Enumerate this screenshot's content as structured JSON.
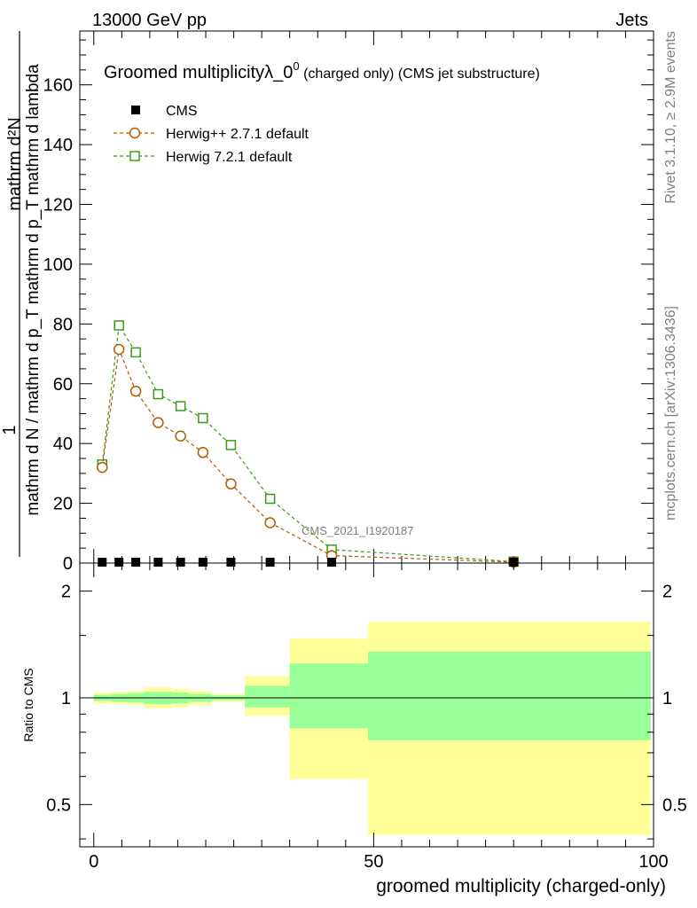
{
  "header": {
    "energy": "13000 GeV pp",
    "category": "Jets"
  },
  "side": {
    "rivet": "Rivet 3.1.10, ≥ 2.9M events",
    "mcplots": "mcplots.cern.ch [arXiv:1306.3436]"
  },
  "colors": {
    "cms": "#000000",
    "herwigpp": "#b35900",
    "herwig7": "#3c9a1a",
    "band_outer": "#ffff99",
    "band_inner": "#99ff99"
  },
  "chart_data": [
    {
      "type": "line",
      "title": "Groomed multiplicityλ_0",
      "title_sup": "0",
      "title_suffix_small": " (charged only)",
      "title_suffix": " (CMS jet substructure)",
      "watermark": "CMS_2021_I1920187",
      "ylabel_numerator": "1",
      "ylabel_denominator": "mathrm d N / mathrm d p_T mathrm d p_T mathrm d lambda",
      "ylabel_top": "mathrm d²N",
      "ylim": [
        0,
        178
      ],
      "xlim": [
        -2.5,
        100
      ],
      "yticks": [
        0,
        20,
        40,
        60,
        80,
        100,
        120,
        140,
        160
      ],
      "ytick_labels": [
        "0",
        "20",
        "40",
        "60",
        "80",
        "100",
        "120",
        "140",
        "160"
      ],
      "legend": [
        "CMS",
        "Herwig++ 2.7.1 default",
        "Herwig 7.2.1 default"
      ],
      "legend_position": "top-left",
      "series": [
        {
          "name": "CMS",
          "marker": "square-filled",
          "x": [
            1.5,
            4.5,
            7.5,
            11.5,
            15.5,
            19.5,
            24.5,
            31.5,
            42.5,
            75
          ],
          "y": [
            0.3,
            0.3,
            0.3,
            0.3,
            0.3,
            0.3,
            0.3,
            0.3,
            0.3,
            0.3
          ]
        },
        {
          "name": "Herwig++ 2.7.1 default",
          "marker": "circle-open",
          "x": [
            1.5,
            4.5,
            7.5,
            11.5,
            15.5,
            19.5,
            24.5,
            31.5,
            42.5,
            75
          ],
          "y": [
            32,
            71.5,
            57.5,
            47,
            42.5,
            37,
            26.5,
            13.5,
            2.5,
            0.3
          ]
        },
        {
          "name": "Herwig 7.2.1 default",
          "marker": "square-open",
          "x": [
            1.5,
            4.5,
            7.5,
            11.5,
            15.5,
            19.5,
            24.5,
            31.5,
            42.5,
            75
          ],
          "y": [
            33,
            79.5,
            70.5,
            56.5,
            52.5,
            48.5,
            39.5,
            21.5,
            4.5,
            0.5
          ]
        }
      ]
    },
    {
      "type": "area",
      "ylabel": "Ratio to CMS",
      "xlabel": "groomed multiplicity (charged-only)",
      "xlim": [
        -2.5,
        100
      ],
      "ylim": [
        0.38,
        2.4
      ],
      "log_y": true,
      "xticks": [
        0,
        50,
        100
      ],
      "xtick_labels": [
        "0",
        "50",
        "100"
      ],
      "yticks": [
        0.5,
        1,
        2
      ],
      "ytick_labels": [
        "0.5",
        "1",
        "2"
      ],
      "reference_line": 1,
      "bins": [
        {
          "x0": 0,
          "x1": 3,
          "outer": [
            0.965,
            1.035
          ],
          "inner": [
            0.98,
            1.02
          ]
        },
        {
          "x0": 3,
          "x1": 6,
          "outer": [
            0.96,
            1.04
          ],
          "inner": [
            0.975,
            1.025
          ]
        },
        {
          "x0": 6,
          "x1": 9,
          "outer": [
            0.955,
            1.045
          ],
          "inner": [
            0.97,
            1.03
          ]
        },
        {
          "x0": 9,
          "x1": 14,
          "outer": [
            0.935,
            1.07
          ],
          "inner": [
            0.96,
            1.04
          ]
        },
        {
          "x0": 14,
          "x1": 17,
          "outer": [
            0.94,
            1.06
          ],
          "inner": [
            0.965,
            1.035
          ]
        },
        {
          "x0": 17,
          "x1": 21,
          "outer": [
            0.955,
            1.045
          ],
          "inner": [
            0.975,
            1.025
          ]
        },
        {
          "x0": 21,
          "x1": 27,
          "outer": [
            0.975,
            1.025
          ],
          "inner": [
            0.985,
            1.015
          ]
        },
        {
          "x0": 27,
          "x1": 35,
          "outer": [
            0.89,
            1.15
          ],
          "inner": [
            0.94,
            1.08
          ]
        },
        {
          "x0": 35,
          "x1": 49,
          "outer": [
            0.59,
            1.47
          ],
          "inner": [
            0.82,
            1.25
          ]
        },
        {
          "x0": 49,
          "x1": 99.5,
          "outer": [
            0.41,
            1.64
          ],
          "inner": [
            0.76,
            1.35
          ]
        }
      ]
    }
  ]
}
